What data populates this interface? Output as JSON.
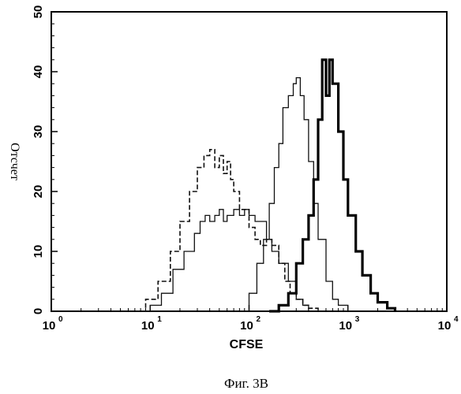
{
  "chart_data": {
    "type": "line",
    "xlabel": "CFSE",
    "ylabel": "Отсчет",
    "x_scale": "log",
    "xlim": [
      1,
      10000
    ],
    "ylim": [
      0,
      50
    ],
    "x_ticks": [
      {
        "value": 1,
        "base": "10",
        "exp": "0"
      },
      {
        "value": 10,
        "base": "10",
        "exp": "1"
      },
      {
        "value": 100,
        "base": "10",
        "exp": "2"
      },
      {
        "value": 1000,
        "base": "10",
        "exp": "3"
      },
      {
        "value": 10000,
        "base": "10",
        "exp": "4"
      }
    ],
    "y_ticks": [
      "0",
      "10",
      "20",
      "30",
      "40",
      "50"
    ],
    "grid": false,
    "series": [
      {
        "style": "dashed",
        "x": [
          7,
          9,
          12,
          16,
          20,
          25,
          30,
          35,
          40,
          45,
          50,
          55,
          60,
          65,
          70,
          80,
          90,
          100,
          115,
          130,
          150,
          170,
          200,
          230,
          260,
          300,
          350,
          400,
          500
        ],
        "y": [
          0,
          2,
          5,
          10,
          15,
          20,
          24,
          26,
          27,
          24,
          26,
          23,
          25,
          22,
          20,
          17,
          17,
          14,
          12,
          11,
          12,
          11,
          8,
          5,
          3,
          2,
          1,
          0.5,
          0
        ]
      },
      {
        "style": "thin",
        "x": [
          8,
          10,
          13,
          17,
          22,
          28,
          32,
          36,
          40,
          45,
          50,
          55,
          60,
          70,
          80,
          90,
          100,
          115,
          130,
          150,
          170,
          200,
          250,
          300,
          350,
          400
        ],
        "y": [
          0,
          1,
          3,
          7,
          10,
          13,
          15,
          16,
          15,
          16,
          17,
          15,
          16,
          17,
          16,
          17,
          16,
          15,
          15,
          12,
          10,
          8,
          5,
          2,
          1,
          0
        ]
      },
      {
        "style": "thin",
        "x": [
          80,
          100,
          120,
          140,
          160,
          180,
          200,
          220,
          250,
          280,
          300,
          330,
          360,
          400,
          450,
          500,
          600,
          700,
          800,
          1000
        ],
        "y": [
          0,
          3,
          8,
          12,
          18,
          24,
          28,
          34,
          36,
          38,
          39,
          36,
          32,
          25,
          18,
          12,
          5,
          2,
          1,
          0
        ]
      },
      {
        "style": "thick",
        "x": [
          160,
          200,
          250,
          300,
          350,
          400,
          450,
          500,
          550,
          600,
          650,
          700,
          800,
          900,
          1000,
          1200,
          1400,
          1700,
          2000,
          2500,
          3000
        ],
        "y": [
          0,
          1,
          3,
          8,
          12,
          16,
          22,
          32,
          42,
          36,
          42,
          38,
          30,
          22,
          16,
          10,
          6,
          3,
          1.5,
          0.5,
          0
        ]
      }
    ]
  },
  "caption": "Фиг. 3В"
}
